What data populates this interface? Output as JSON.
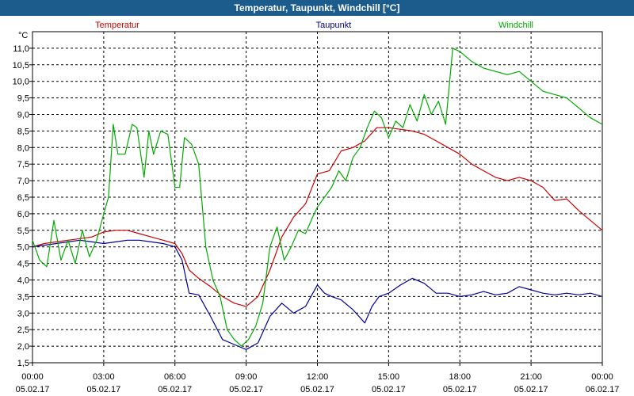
{
  "window": {
    "title": "Temperatur, Taupunkt, Windchill [°C]"
  },
  "chart_data": {
    "type": "line",
    "title": "Temperatur, Taupunkt, Windchill [°C]",
    "ylabel": "°C",
    "xlabel": "",
    "ylim": [
      1.5,
      11.5
    ],
    "xlim": [
      0,
      24
    ],
    "y_ticks": [
      1.5,
      2.0,
      2.5,
      3.0,
      3.5,
      4.0,
      4.5,
      5.0,
      5.5,
      6.0,
      6.5,
      7.0,
      7.5,
      8.0,
      8.5,
      9.0,
      9.5,
      10.0,
      10.5,
      11.0
    ],
    "y_tick_labels": [
      "1,5",
      "2,0",
      "2,5",
      "3,0",
      "3,5",
      "4,0",
      "4,5",
      "5,0",
      "5,5",
      "6,0",
      "6,5",
      "7,0",
      "7,5",
      "8,0",
      "8,5",
      "9,0",
      "9,5",
      "10,0",
      "10,5",
      "11,0"
    ],
    "x_ticks": [
      {
        "x": 0,
        "time": "00:00",
        "date": "05.02.17"
      },
      {
        "x": 3,
        "time": "03:00",
        "date": "05.02.17"
      },
      {
        "x": 6,
        "time": "06:00",
        "date": "05.02.17"
      },
      {
        "x": 9,
        "time": "09:00",
        "date": "05.02.17"
      },
      {
        "x": 12,
        "time": "12:00",
        "date": "05.02.17"
      },
      {
        "x": 15,
        "time": "15:00",
        "date": "05.02.17"
      },
      {
        "x": 18,
        "time": "18:00",
        "date": "05.02.17"
      },
      {
        "x": 21,
        "time": "21:00",
        "date": "05.02.17"
      },
      {
        "x": 24,
        "time": "00:00",
        "date": "06.02.17"
      }
    ],
    "grid": true,
    "legend": "top",
    "series": [
      {
        "name": "Temperatur",
        "color": "#cc0000",
        "x": [
          0,
          0.5,
          1,
          1.5,
          2,
          2.5,
          3,
          3.5,
          4,
          4.5,
          5,
          5.5,
          6,
          6.3,
          6.6,
          7,
          7.5,
          8,
          8.5,
          9,
          9.5,
          10,
          10.5,
          11,
          11.5,
          12,
          12.5,
          13,
          13.5,
          14,
          14.5,
          15,
          15.5,
          16,
          16.5,
          17,
          17.5,
          18,
          18.5,
          19,
          19.5,
          20,
          20.5,
          21,
          21.5,
          22,
          22.5,
          23,
          23.5,
          24
        ],
        "y": [
          5.0,
          5.1,
          5.15,
          5.2,
          5.25,
          5.3,
          5.45,
          5.5,
          5.5,
          5.4,
          5.3,
          5.2,
          5.1,
          4.8,
          4.3,
          4.05,
          3.8,
          3.5,
          3.3,
          3.2,
          3.5,
          4.3,
          5.3,
          5.9,
          6.3,
          7.2,
          7.3,
          7.9,
          8.0,
          8.2,
          8.6,
          8.6,
          8.55,
          8.5,
          8.4,
          8.2,
          8.0,
          7.8,
          7.5,
          7.3,
          7.1,
          7.0,
          7.1,
          7.0,
          6.8,
          6.4,
          6.45,
          6.1,
          5.8,
          5.5
        ]
      },
      {
        "name": "Taupunkt",
        "color": "#000099",
        "x": [
          0,
          0.5,
          1,
          1.5,
          2,
          2.5,
          3,
          3.5,
          4,
          4.5,
          5,
          5.5,
          6,
          6.3,
          6.6,
          7,
          7.5,
          8,
          8.5,
          9,
          9.5,
          10,
          10.5,
          11,
          11.5,
          12,
          12.3,
          12.6,
          13,
          13.5,
          14,
          14.3,
          14.6,
          15,
          15.5,
          16,
          16.5,
          17,
          17.5,
          18,
          18.5,
          19,
          19.5,
          20,
          20.5,
          21,
          21.5,
          22,
          22.5,
          23,
          23.5,
          24
        ],
        "y": [
          5.0,
          5.05,
          5.1,
          5.15,
          5.2,
          5.15,
          5.1,
          5.15,
          5.2,
          5.2,
          5.15,
          5.1,
          5.0,
          4.6,
          3.6,
          3.55,
          2.9,
          2.2,
          2.05,
          1.9,
          2.1,
          2.9,
          3.3,
          3.0,
          3.2,
          3.85,
          3.6,
          3.5,
          3.4,
          3.1,
          2.7,
          3.2,
          3.5,
          3.6,
          3.85,
          4.05,
          3.9,
          3.6,
          3.6,
          3.5,
          3.55,
          3.65,
          3.55,
          3.6,
          3.8,
          3.7,
          3.6,
          3.55,
          3.6,
          3.55,
          3.6,
          3.5
        ]
      },
      {
        "name": "Windchill",
        "color": "#00aa00",
        "x": [
          0,
          0.3,
          0.6,
          0.9,
          1.2,
          1.5,
          1.8,
          2.1,
          2.4,
          2.7,
          3.0,
          3.2,
          3.4,
          3.6,
          3.9,
          4.2,
          4.4,
          4.7,
          4.9,
          5.1,
          5.4,
          5.7,
          6.0,
          6.2,
          6.4,
          6.7,
          7.0,
          7.3,
          7.6,
          7.9,
          8.2,
          8.5,
          8.8,
          9.1,
          9.4,
          9.7,
          10.0,
          10.3,
          10.6,
          10.9,
          11.2,
          11.5,
          11.8,
          12.0,
          12.3,
          12.6,
          12.9,
          13.2,
          13.5,
          13.8,
          14.1,
          14.4,
          14.7,
          15.0,
          15.3,
          15.6,
          15.9,
          16.2,
          16.5,
          16.8,
          17.1,
          17.4,
          17.7,
          18.0,
          18.5,
          19.0,
          19.5,
          20.0,
          20.5,
          21.0,
          21.5,
          22.0,
          22.5,
          23.0,
          23.5,
          24.0
        ],
        "y": [
          5.2,
          4.6,
          4.4,
          5.8,
          4.6,
          5.2,
          4.5,
          5.5,
          4.7,
          5.2,
          6.0,
          6.5,
          8.7,
          7.8,
          7.8,
          8.7,
          8.6,
          7.1,
          8.5,
          7.8,
          8.5,
          8.4,
          6.8,
          6.8,
          8.3,
          8.1,
          7.5,
          5.0,
          4.0,
          3.5,
          2.5,
          2.2,
          2.0,
          2.2,
          2.6,
          3.3,
          5.0,
          5.6,
          4.6,
          5.0,
          5.5,
          5.4,
          5.9,
          6.2,
          6.5,
          6.8,
          7.3,
          7.0,
          7.7,
          8.0,
          8.6,
          9.1,
          8.9,
          8.3,
          8.8,
          8.6,
          9.3,
          8.8,
          9.6,
          9.0,
          9.4,
          8.7,
          11.0,
          10.9,
          10.6,
          10.4,
          10.3,
          10.2,
          10.3,
          10.0,
          9.7,
          9.6,
          9.5,
          9.2,
          8.9,
          8.7
        ]
      }
    ]
  }
}
